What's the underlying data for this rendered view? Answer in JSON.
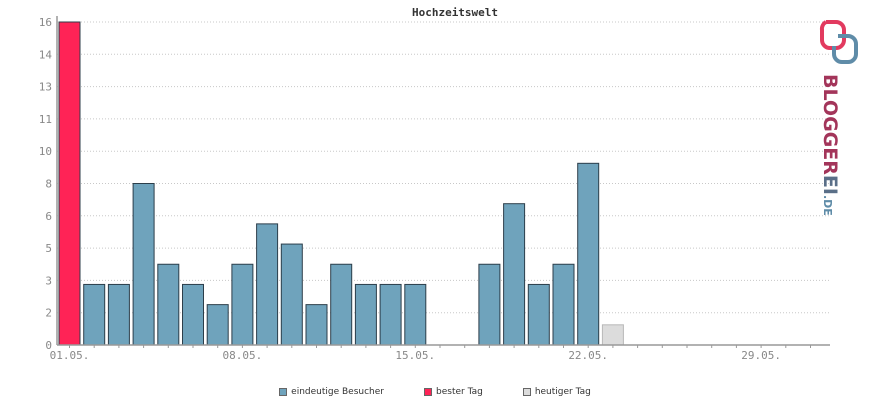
{
  "chart_data": {
    "type": "bar",
    "title": "Hochzeitswelt",
    "xlabel": "",
    "ylabel": "",
    "ylim": [
      0,
      16
    ],
    "y_ticks": [
      "0",
      "2",
      "3",
      "5",
      "6",
      "8",
      "10",
      "11",
      "13",
      "14",
      "16"
    ],
    "x_ticks": [
      "01.05.",
      "08.05.",
      "15.05.",
      "22.05.",
      "29.05."
    ],
    "grid": true,
    "legend_placement": "bottom",
    "categories": [
      "01.05.",
      "02.05.",
      "03.05.",
      "04.05.",
      "05.05.",
      "06.05.",
      "07.05.",
      "08.05.",
      "09.05.",
      "10.05.",
      "11.05.",
      "12.05.",
      "13.05.",
      "14.05.",
      "15.05.",
      "16.05.",
      "17.05.",
      "18.05.",
      "19.05.",
      "20.05.",
      "21.05.",
      "22.05.",
      "23.05.",
      "24.05.",
      "25.05.",
      "26.05.",
      "27.05.",
      "28.05.",
      "29.05.",
      "30.05.",
      "31.05."
    ],
    "values": [
      16,
      3,
      3,
      8,
      4,
      3,
      2,
      4,
      6,
      5,
      2,
      4,
      3,
      3,
      3,
      0,
      0,
      4,
      7,
      3,
      4,
      9,
      1,
      0,
      0,
      0,
      0,
      0,
      0,
      0,
      0
    ],
    "bar_kinds": [
      "best",
      "visitor",
      "visitor",
      "visitor",
      "visitor",
      "visitor",
      "visitor",
      "visitor",
      "visitor",
      "visitor",
      "visitor",
      "visitor",
      "visitor",
      "visitor",
      "visitor",
      "visitor",
      "visitor",
      "visitor",
      "visitor",
      "visitor",
      "visitor",
      "visitor",
      "today",
      "visitor",
      "visitor",
      "visitor",
      "visitor",
      "visitor",
      "visitor",
      "visitor",
      "visitor"
    ],
    "colors": {
      "visitor": "#6fa3bc",
      "best": "#ff2356",
      "today": "#dcdcdc"
    }
  },
  "legend": {
    "visitors": "eindeutige Besucher",
    "best_day": "bester Tag",
    "today": "heutiger Tag"
  },
  "logo": {
    "text": "BLOGGEREI",
    "suffix": ".DE"
  }
}
